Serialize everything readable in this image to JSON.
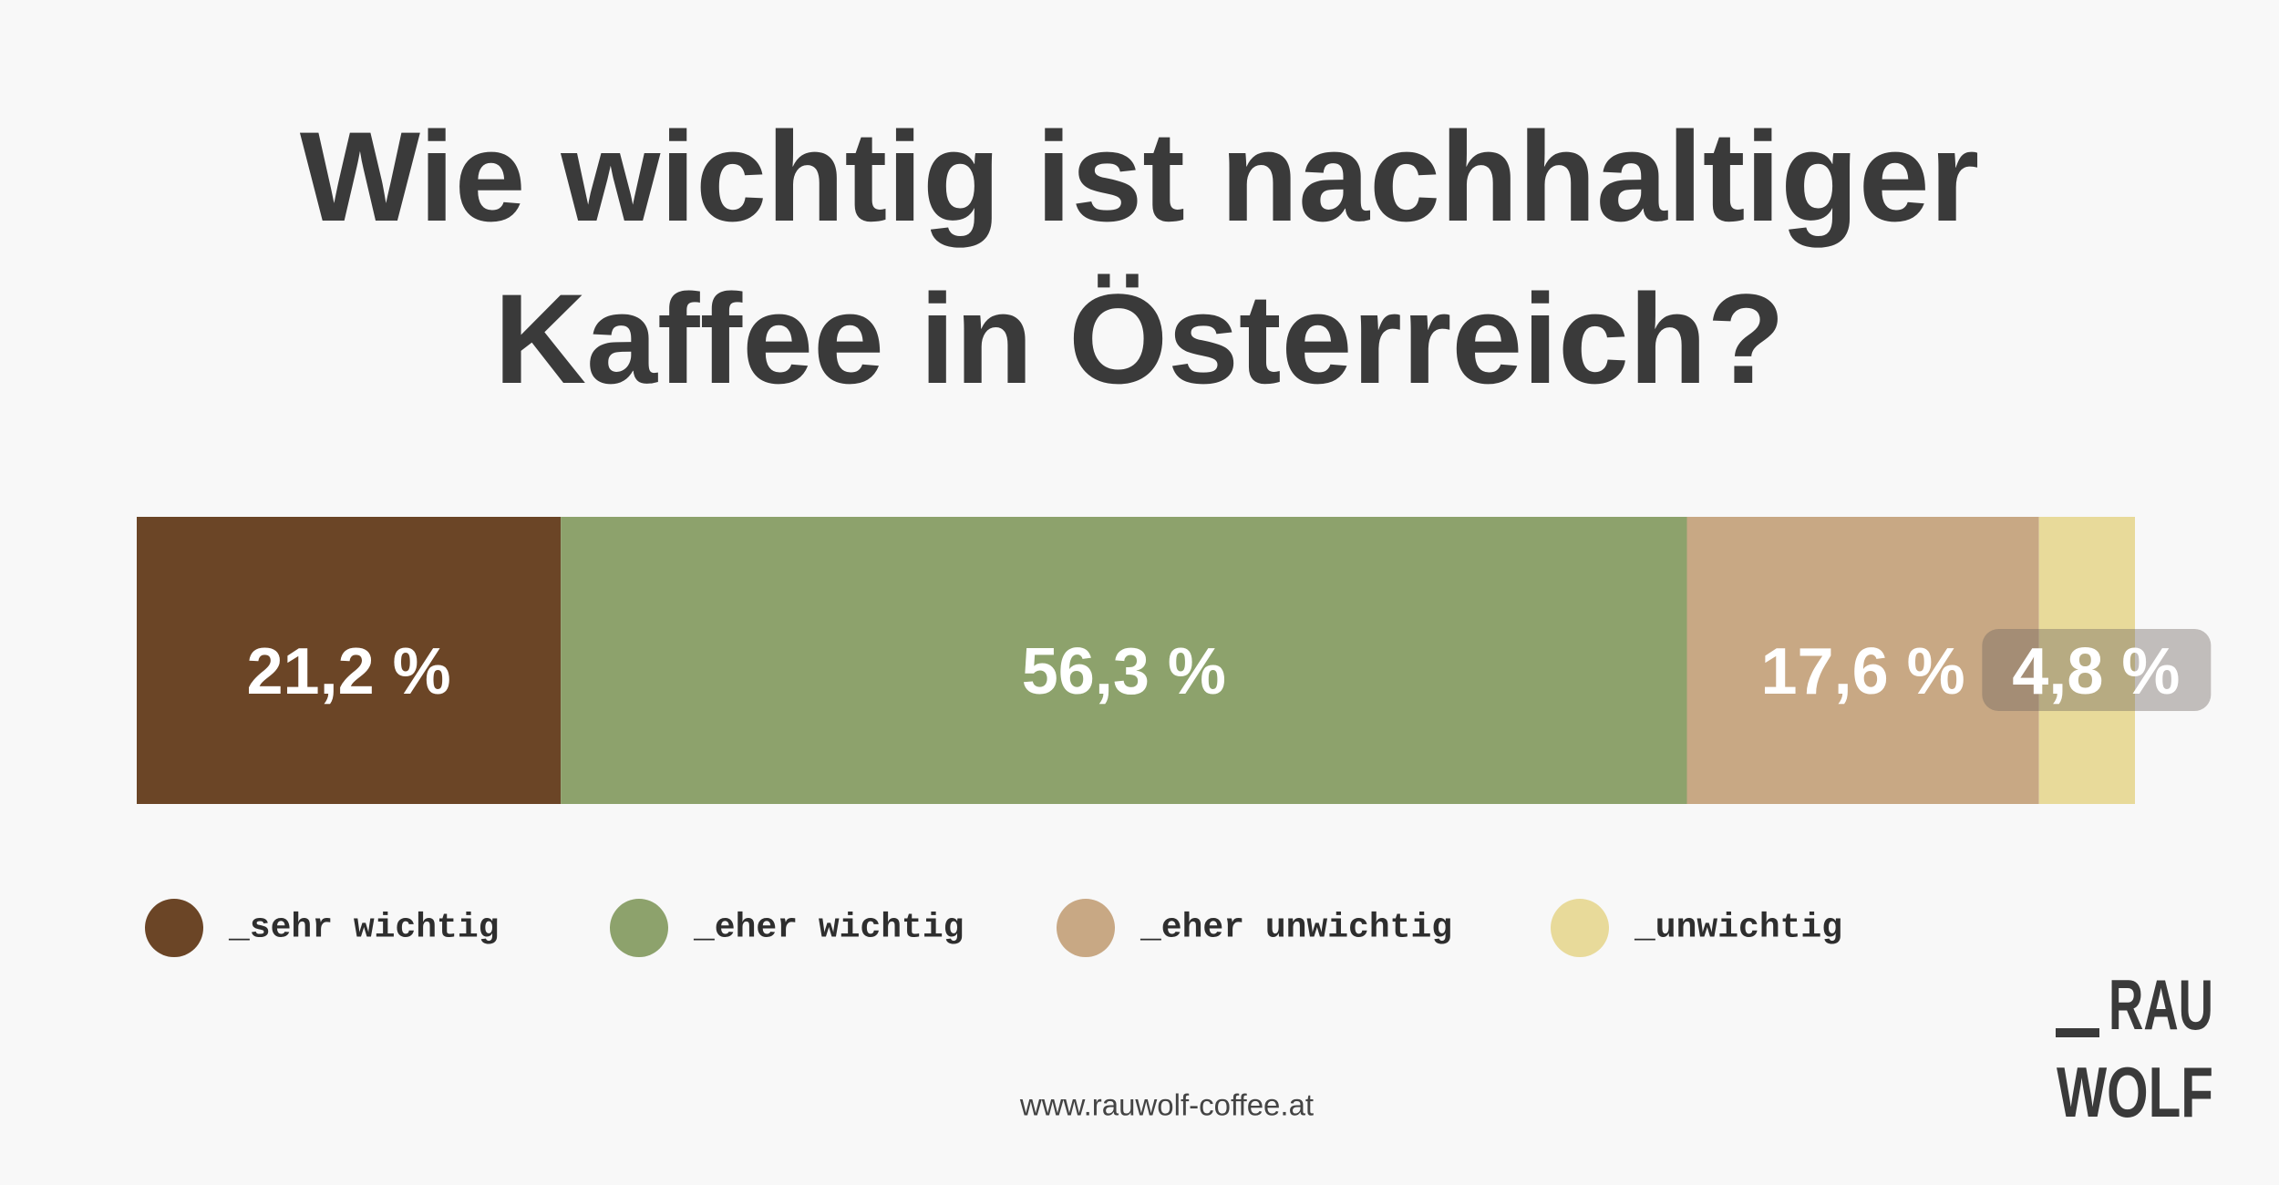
{
  "chart_data": {
    "type": "stacked-bar",
    "title": "Wie wichtig ist nachhaltiger Kaffee in Österreich?",
    "xlim": [
      0,
      99.9
    ],
    "legend": "bottom",
    "series": [
      {
        "name": "_sehr wichtig",
        "color": "#6b4526",
        "values": [
          21.2
        ],
        "value_labels": [
          "21,2 %"
        ]
      },
      {
        "name": "_eher wichtig",
        "color": "#8da26c",
        "values": [
          56.3
        ],
        "value_labels": [
          "56,3 %"
        ]
      },
      {
        "name": "_eher unwichtig",
        "color": "#c8a884",
        "values": [
          17.6
        ],
        "value_labels": [
          "17,6 %"
        ]
      },
      {
        "name": "_unwichtig",
        "color": "#e8da9a",
        "values": [
          4.8
        ],
        "value_labels": [
          "4,8 %"
        ]
      }
    ],
    "source": "www.rauwolf-coffee.at",
    "logo": [
      "RAU",
      "WOLF"
    ]
  }
}
